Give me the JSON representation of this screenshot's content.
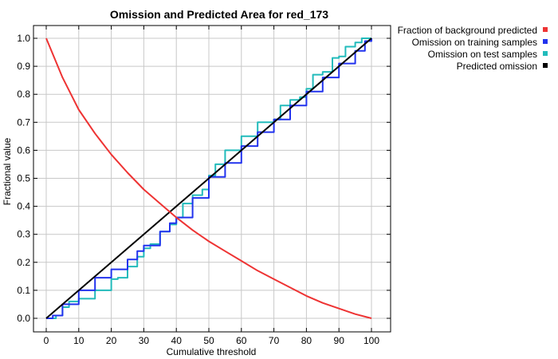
{
  "chart_data": {
    "type": "line",
    "title": "Omission and Predicted Area for red_173",
    "xlabel": "Cumulative threshold",
    "ylabel": "Fractional value",
    "xlim": [
      0,
      100
    ],
    "ylim": [
      0,
      1.0
    ],
    "xticks": [
      "0",
      "10",
      "20",
      "30",
      "40",
      "50",
      "60",
      "70",
      "80",
      "90",
      "100"
    ],
    "yticks": [
      "0.0",
      "0.1",
      "0.2",
      "0.3",
      "0.4",
      "0.5",
      "0.6",
      "0.7",
      "0.8",
      "0.9",
      "1.0"
    ],
    "grid": true,
    "legend_position": "top-right-outside",
    "series": [
      {
        "name": "Fraction of background predicted",
        "color": "#ee3333",
        "x": [
          0,
          5,
          10,
          15,
          20,
          25,
          30,
          35,
          40,
          45,
          50,
          55,
          60,
          65,
          70,
          75,
          80,
          85,
          90,
          95,
          100
        ],
        "y": [
          1.0,
          0.86,
          0.745,
          0.66,
          0.585,
          0.52,
          0.46,
          0.41,
          0.36,
          0.315,
          0.275,
          0.24,
          0.205,
          0.17,
          0.14,
          0.11,
          0.08,
          0.055,
          0.035,
          0.015,
          0.0
        ]
      },
      {
        "name": "Omission on training samples",
        "color": "#2233ee",
        "x": [
          0,
          2,
          5,
          10,
          15,
          20,
          25,
          28,
          30,
          35,
          38,
          40,
          45,
          50,
          55,
          60,
          65,
          70,
          75,
          80,
          85,
          90,
          95,
          98,
          100
        ],
        "y": [
          0.0,
          0.01,
          0.05,
          0.1,
          0.145,
          0.175,
          0.21,
          0.24,
          0.26,
          0.31,
          0.34,
          0.36,
          0.43,
          0.505,
          0.555,
          0.615,
          0.665,
          0.71,
          0.76,
          0.81,
          0.86,
          0.91,
          0.955,
          0.99,
          1.0
        ]
      },
      {
        "name": "Omission on test samples",
        "color": "#22bbbb",
        "x": [
          0,
          3,
          5,
          7,
          10,
          15,
          20,
          22,
          25,
          28,
          30,
          32,
          35,
          38,
          40,
          42,
          45,
          48,
          50,
          52,
          55,
          58,
          60,
          65,
          70,
          72,
          75,
          78,
          80,
          82,
          85,
          88,
          90,
          92,
          95,
          97,
          100
        ],
        "y": [
          0.0,
          0.01,
          0.04,
          0.06,
          0.07,
          0.1,
          0.14,
          0.145,
          0.185,
          0.22,
          0.25,
          0.265,
          0.31,
          0.335,
          0.36,
          0.41,
          0.44,
          0.46,
          0.51,
          0.55,
          0.6,
          0.6,
          0.65,
          0.7,
          0.71,
          0.76,
          0.78,
          0.79,
          0.82,
          0.87,
          0.88,
          0.93,
          0.935,
          0.97,
          0.985,
          1.0,
          1.0
        ]
      },
      {
        "name": "Predicted omission",
        "color": "#000000",
        "x": [
          0,
          100
        ],
        "y": [
          0.0,
          1.0
        ]
      }
    ]
  }
}
